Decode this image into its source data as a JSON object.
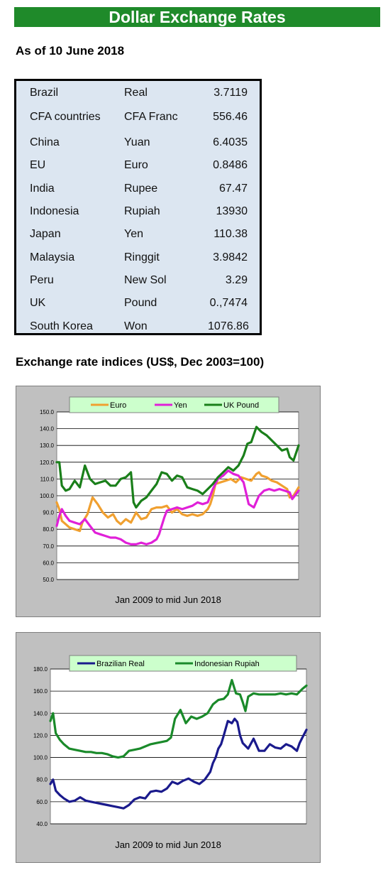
{
  "header": {
    "title": "Dollar Exchange Rates",
    "as_of": "As of 10 June 2018"
  },
  "rates": [
    {
      "country": "Brazil",
      "currency": "Real",
      "value": "3.7119"
    },
    {
      "country": "CFA countries",
      "currency": "CFA Franc",
      "value": "556.46"
    },
    {
      "country": "China",
      "currency": "Yuan",
      "value": "6.4035"
    },
    {
      "country": "EU",
      "currency": "Euro",
      "value": "0.8486"
    },
    {
      "country": "India",
      "currency": "Rupee",
      "value": "67.47"
    },
    {
      "country": "Indonesia",
      "currency": "Rupiah",
      "value": "13930"
    },
    {
      "country": "Japan",
      "currency": "Yen",
      "value": "110.38"
    },
    {
      "country": "Malaysia",
      "currency": "Ringgit",
      "value": "3.9842"
    },
    {
      "country": "Peru",
      "currency": "New Sol",
      "value": "3.29"
    },
    {
      "country": "UK",
      "currency": "Pound",
      "value": "0.,7474"
    },
    {
      "country": "South Korea",
      "currency": "Won",
      "value": "1076.86"
    }
  ],
  "indices_title": "Exchange rate indices (US$, Dec 2003=100)",
  "chart_data": [
    {
      "type": "line",
      "title": "",
      "xlabel": "Jan 2009  to mid Jun 2018",
      "ylabel": "",
      "ylim": [
        50,
        150
      ],
      "yticks": [
        "150.0",
        "140.0",
        "130.0",
        "120.0",
        "110.0",
        "100.0",
        "90.0",
        "80.0",
        "70.0",
        "60.0",
        "50.0"
      ],
      "grid": true,
      "legend_position": "top",
      "x_range": [
        2009.0,
        2018.45
      ],
      "series": [
        {
          "name": "Euro",
          "color": "#f0a030",
          "x": [
            2009.0,
            2009.1,
            2009.2,
            2009.35,
            2009.5,
            2009.7,
            2009.9,
            2010.0,
            2010.2,
            2010.4,
            2010.6,
            2010.8,
            2011.0,
            2011.2,
            2011.35,
            2011.5,
            2011.7,
            2011.9,
            2012.1,
            2012.3,
            2012.5,
            2012.7,
            2012.9,
            2013.1,
            2013.3,
            2013.5,
            2013.7,
            2013.9,
            2014.1,
            2014.3,
            2014.5,
            2014.7,
            2014.9,
            2015.0,
            2015.1,
            2015.2,
            2015.4,
            2015.6,
            2015.8,
            2016.0,
            2016.2,
            2016.4,
            2016.6,
            2016.8,
            2016.9,
            2017.0,
            2017.2,
            2017.4,
            2017.6,
            2017.8,
            2018.0,
            2018.1,
            2018.25,
            2018.45
          ],
          "values": [
            96,
            92,
            85,
            83,
            81,
            80,
            79,
            84,
            89,
            99,
            95,
            90,
            87,
            89,
            85,
            83,
            86,
            84,
            90,
            86,
            87,
            92,
            93,
            93,
            94,
            90,
            92,
            89,
            88,
            89,
            88,
            89,
            92,
            95,
            100,
            107,
            108,
            109,
            110,
            108,
            111,
            110,
            109,
            113,
            114,
            112,
            111,
            109,
            108,
            106,
            104,
            99,
            100,
            105
          ]
        },
        {
          "name": "Yen",
          "color": "#e020d8",
          "x": [
            2009.0,
            2009.1,
            2009.2,
            2009.35,
            2009.5,
            2009.7,
            2009.9,
            2010.1,
            2010.3,
            2010.5,
            2010.7,
            2010.9,
            2011.1,
            2011.3,
            2011.5,
            2011.7,
            2011.9,
            2012.1,
            2012.3,
            2012.5,
            2012.7,
            2012.9,
            2013.0,
            2013.1,
            2013.2,
            2013.3,
            2013.5,
            2013.7,
            2013.9,
            2014.1,
            2014.3,
            2014.5,
            2014.7,
            2014.9,
            2015.1,
            2015.3,
            2015.5,
            2015.7,
            2015.9,
            2016.1,
            2016.3,
            2016.5,
            2016.7,
            2016.9,
            2017.1,
            2017.3,
            2017.5,
            2017.7,
            2017.9,
            2018.1,
            2018.2,
            2018.3,
            2018.45
          ],
          "values": [
            82,
            88,
            92,
            88,
            85,
            84,
            83,
            86,
            82,
            78,
            77,
            76,
            75,
            75,
            74,
            72,
            71,
            71,
            72,
            71,
            72,
            74,
            77,
            82,
            87,
            91,
            92,
            93,
            92,
            93,
            94,
            96,
            95,
            96,
            104,
            110,
            112,
            115,
            113,
            112,
            108,
            95,
            93,
            100,
            103,
            104,
            103,
            104,
            103,
            102,
            98,
            100,
            103
          ]
        },
        {
          "name": "UK Pound",
          "color": "#1a7f1a",
          "x": [
            2009.0,
            2009.1,
            2009.2,
            2009.35,
            2009.5,
            2009.7,
            2009.9,
            2010.1,
            2010.3,
            2010.5,
            2010.7,
            2010.9,
            2011.1,
            2011.3,
            2011.5,
            2011.7,
            2011.9,
            2012.0,
            2012.1,
            2012.3,
            2012.5,
            2012.7,
            2012.9,
            2013.1,
            2013.3,
            2013.5,
            2013.7,
            2013.9,
            2014.1,
            2014.3,
            2014.5,
            2014.7,
            2014.9,
            2015.1,
            2015.3,
            2015.5,
            2015.7,
            2015.9,
            2016.1,
            2016.3,
            2016.45,
            2016.6,
            2016.8,
            2017.0,
            2017.2,
            2017.4,
            2017.6,
            2017.8,
            2018.0,
            2018.1,
            2018.25,
            2018.45
          ],
          "values": [
            120,
            120,
            106,
            103,
            104,
            109,
            105,
            118,
            110,
            107,
            108,
            109,
            106,
            106,
            110,
            111,
            114,
            96,
            93,
            97,
            99,
            103,
            107,
            114,
            113,
            109,
            112,
            111,
            105,
            104,
            103,
            101,
            104,
            107,
            111,
            114,
            117,
            115,
            118,
            124,
            131,
            132,
            141,
            138,
            136,
            133,
            130,
            127,
            128,
            123,
            121,
            130
          ]
        }
      ]
    },
    {
      "type": "line",
      "title": "",
      "xlabel": "Jan 2009  to mid Jun 2018",
      "ylabel": "",
      "ylim": [
        40,
        180
      ],
      "yticks": [
        "180.0",
        "160.0",
        "140.0",
        "120.0",
        "100.0",
        "80.0",
        "60.0",
        "40.0"
      ],
      "grid": true,
      "legend_position": "top",
      "x_range": [
        2009.0,
        2018.45
      ],
      "series": [
        {
          "name": "Brazilian Real",
          "color": "#1a1a8c",
          "x": [
            2009.0,
            2009.1,
            2009.2,
            2009.35,
            2009.5,
            2009.7,
            2009.9,
            2010.1,
            2010.3,
            2010.5,
            2010.7,
            2010.9,
            2011.1,
            2011.3,
            2011.5,
            2011.7,
            2011.9,
            2012.1,
            2012.3,
            2012.5,
            2012.7,
            2012.9,
            2013.1,
            2013.3,
            2013.5,
            2013.7,
            2013.9,
            2014.1,
            2014.3,
            2014.5,
            2014.7,
            2014.9,
            2015.0,
            2015.1,
            2015.2,
            2015.3,
            2015.4,
            2015.55,
            2015.7,
            2015.8,
            2015.9,
            2016.0,
            2016.1,
            2016.3,
            2016.5,
            2016.7,
            2016.9,
            2017.1,
            2017.3,
            2017.5,
            2017.7,
            2017.9,
            2018.1,
            2018.2,
            2018.3,
            2018.45
          ],
          "values": [
            76,
            80,
            70,
            66,
            63,
            60,
            61,
            64,
            61,
            60,
            59,
            58,
            57,
            56,
            55,
            54,
            57,
            62,
            64,
            63,
            69,
            70,
            69,
            72,
            78,
            76,
            79,
            81,
            78,
            76,
            80,
            87,
            95,
            100,
            108,
            112,
            120,
            133,
            131,
            135,
            132,
            120,
            113,
            108,
            117,
            106,
            106,
            112,
            109,
            108,
            112,
            110,
            106,
            113,
            118,
            125
          ]
        },
        {
          "name": "Indonesian Rupiah",
          "color": "#1a8a2a",
          "x": [
            2009.0,
            2009.1,
            2009.2,
            2009.35,
            2009.5,
            2009.7,
            2009.9,
            2010.1,
            2010.3,
            2010.5,
            2010.7,
            2010.9,
            2011.1,
            2011.3,
            2011.5,
            2011.7,
            2011.9,
            2012.1,
            2012.3,
            2012.5,
            2012.7,
            2012.9,
            2013.1,
            2013.3,
            2013.45,
            2013.6,
            2013.8,
            2014.0,
            2014.2,
            2014.4,
            2014.6,
            2014.8,
            2015.0,
            2015.2,
            2015.4,
            2015.55,
            2015.7,
            2015.85,
            2016.0,
            2016.1,
            2016.2,
            2016.3,
            2016.5,
            2016.7,
            2016.9,
            2017.1,
            2017.3,
            2017.5,
            2017.7,
            2017.9,
            2018.1,
            2018.3,
            2018.45
          ],
          "values": [
            133,
            140,
            122,
            116,
            112,
            108,
            107,
            106,
            105,
            105,
            104,
            104,
            103,
            101,
            100,
            101,
            106,
            107,
            108,
            110,
            112,
            113,
            114,
            115,
            118,
            135,
            143,
            131,
            137,
            135,
            137,
            140,
            148,
            152,
            153,
            157,
            170,
            158,
            157,
            150,
            142,
            155,
            158,
            157,
            157,
            157,
            157,
            158,
            157,
            158,
            157,
            162,
            165
          ]
        }
      ]
    }
  ]
}
